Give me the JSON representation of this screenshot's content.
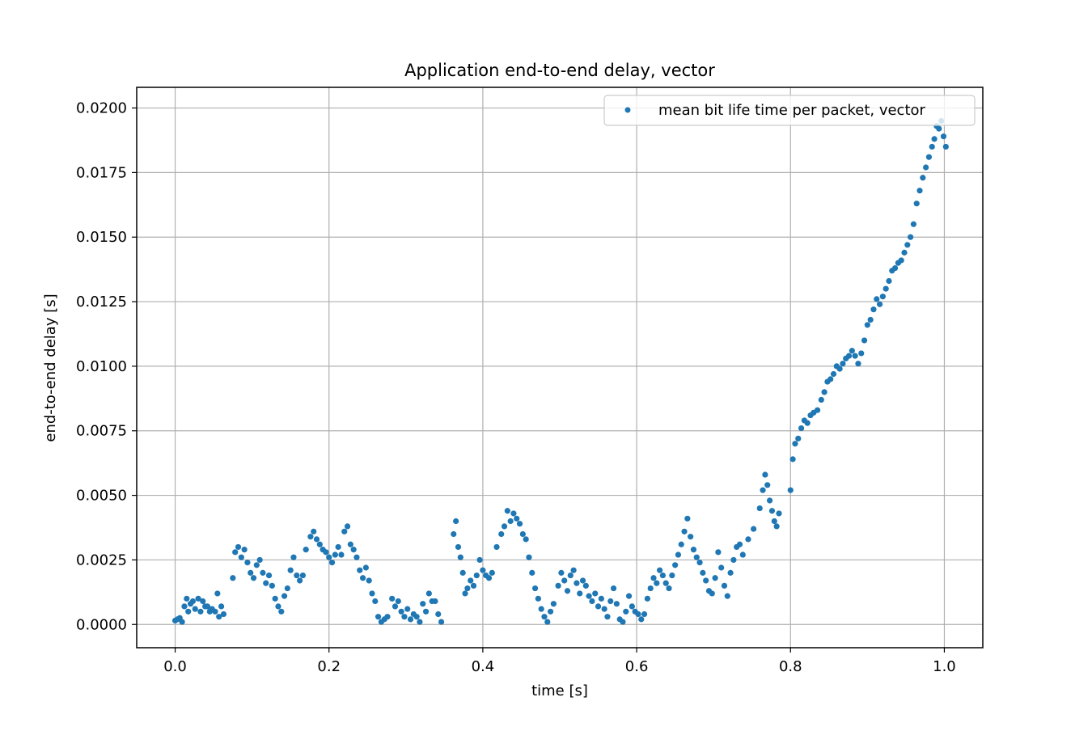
{
  "chart_data": {
    "type": "scatter",
    "title": "Application end-to-end delay, vector",
    "xlabel": "time [s]",
    "ylabel": "end-to-end delay [s]",
    "xlim": [
      -0.05,
      1.05
    ],
    "ylim": [
      -0.0009,
      0.0208
    ],
    "xticks": [
      0.0,
      0.2,
      0.4,
      0.6,
      0.8,
      1.0
    ],
    "xtick_labels": [
      "0.0",
      "0.2",
      "0.4",
      "0.6",
      "0.8",
      "1.0"
    ],
    "yticks": [
      0.0,
      0.0025,
      0.005,
      0.0075,
      0.01,
      0.0125,
      0.015,
      0.0175,
      0.02
    ],
    "ytick_labels": [
      "0.0000",
      "0.0025",
      "0.0050",
      "0.0075",
      "0.0100",
      "0.0125",
      "0.0150",
      "0.0175",
      "0.0200"
    ],
    "grid": true,
    "legend_position": "top-right",
    "series": [
      {
        "name": "mean bit life time per packet, vector",
        "color": "#1f77b4",
        "marker": "circle",
        "points": [
          [
            0.0,
            0.00015
          ],
          [
            0.003,
            0.0002
          ],
          [
            0.006,
            0.00025
          ],
          [
            0.009,
            0.0001
          ],
          [
            0.012,
            0.0007
          ],
          [
            0.015,
            0.001
          ],
          [
            0.017,
            0.0005
          ],
          [
            0.02,
            0.0008
          ],
          [
            0.023,
            0.0009
          ],
          [
            0.026,
            0.0006
          ],
          [
            0.03,
            0.001
          ],
          [
            0.033,
            0.0005
          ],
          [
            0.036,
            0.0009
          ],
          [
            0.039,
            0.0007
          ],
          [
            0.042,
            0.0007
          ],
          [
            0.045,
            0.0005
          ],
          [
            0.048,
            0.0006
          ],
          [
            0.052,
            0.0005
          ],
          [
            0.055,
            0.0012
          ],
          [
            0.057,
            0.0003
          ],
          [
            0.06,
            0.0007
          ],
          [
            0.063,
            0.0004
          ],
          [
            0.075,
            0.0018
          ],
          [
            0.078,
            0.0028
          ],
          [
            0.082,
            0.003
          ],
          [
            0.086,
            0.0026
          ],
          [
            0.09,
            0.0029
          ],
          [
            0.094,
            0.0024
          ],
          [
            0.098,
            0.002
          ],
          [
            0.102,
            0.0018
          ],
          [
            0.106,
            0.0023
          ],
          [
            0.11,
            0.0025
          ],
          [
            0.114,
            0.002
          ],
          [
            0.118,
            0.0016
          ],
          [
            0.122,
            0.0019
          ],
          [
            0.126,
            0.0015
          ],
          [
            0.13,
            0.001
          ],
          [
            0.134,
            0.0007
          ],
          [
            0.138,
            0.0005
          ],
          [
            0.142,
            0.0011
          ],
          [
            0.146,
            0.0014
          ],
          [
            0.15,
            0.0021
          ],
          [
            0.154,
            0.0026
          ],
          [
            0.158,
            0.0019
          ],
          [
            0.162,
            0.0017
          ],
          [
            0.166,
            0.0019
          ],
          [
            0.17,
            0.0029
          ],
          [
            0.176,
            0.0034
          ],
          [
            0.18,
            0.0036
          ],
          [
            0.184,
            0.0033
          ],
          [
            0.188,
            0.0031
          ],
          [
            0.192,
            0.0029
          ],
          [
            0.196,
            0.0028
          ],
          [
            0.2,
            0.0026
          ],
          [
            0.204,
            0.0024
          ],
          [
            0.208,
            0.0027
          ],
          [
            0.212,
            0.003
          ],
          [
            0.216,
            0.0027
          ],
          [
            0.22,
            0.0036
          ],
          [
            0.224,
            0.0038
          ],
          [
            0.228,
            0.0031
          ],
          [
            0.232,
            0.0029
          ],
          [
            0.236,
            0.0026
          ],
          [
            0.24,
            0.0021
          ],
          [
            0.244,
            0.0018
          ],
          [
            0.248,
            0.0022
          ],
          [
            0.252,
            0.0017
          ],
          [
            0.256,
            0.0012
          ],
          [
            0.26,
            0.0009
          ],
          [
            0.264,
            0.0003
          ],
          [
            0.268,
            0.0001
          ],
          [
            0.272,
            0.0002
          ],
          [
            0.276,
            0.0003
          ],
          [
            0.282,
            0.001
          ],
          [
            0.286,
            0.0007
          ],
          [
            0.29,
            0.0009
          ],
          [
            0.294,
            0.0005
          ],
          [
            0.298,
            0.0003
          ],
          [
            0.302,
            0.0006
          ],
          [
            0.306,
            0.0002
          ],
          [
            0.31,
            0.0004
          ],
          [
            0.314,
            0.0003
          ],
          [
            0.318,
            0.0001
          ],
          [
            0.322,
            0.0008
          ],
          [
            0.326,
            0.0005
          ],
          [
            0.33,
            0.0012
          ],
          [
            0.334,
            0.0009
          ],
          [
            0.338,
            0.0009
          ],
          [
            0.342,
            0.0004
          ],
          [
            0.346,
            0.0001
          ],
          [
            0.362,
            0.0035
          ],
          [
            0.365,
            0.004
          ],
          [
            0.368,
            0.003
          ],
          [
            0.371,
            0.0026
          ],
          [
            0.374,
            0.002
          ],
          [
            0.377,
            0.0012
          ],
          [
            0.38,
            0.0014
          ],
          [
            0.384,
            0.0017
          ],
          [
            0.388,
            0.0015
          ],
          [
            0.392,
            0.0019
          ],
          [
            0.396,
            0.0025
          ],
          [
            0.4,
            0.0021
          ],
          [
            0.404,
            0.0019
          ],
          [
            0.408,
            0.0018
          ],
          [
            0.412,
            0.002
          ],
          [
            0.418,
            0.003
          ],
          [
            0.424,
            0.0035
          ],
          [
            0.428,
            0.0038
          ],
          [
            0.432,
            0.0044
          ],
          [
            0.436,
            0.004
          ],
          [
            0.44,
            0.0043
          ],
          [
            0.444,
            0.0041
          ],
          [
            0.448,
            0.0039
          ],
          [
            0.452,
            0.0035
          ],
          [
            0.456,
            0.0033
          ],
          [
            0.46,
            0.0026
          ],
          [
            0.464,
            0.002
          ],
          [
            0.468,
            0.0014
          ],
          [
            0.472,
            0.001
          ],
          [
            0.476,
            0.0006
          ],
          [
            0.48,
            0.0003
          ],
          [
            0.484,
            0.0001
          ],
          [
            0.488,
            0.0005
          ],
          [
            0.492,
            0.0008
          ],
          [
            0.498,
            0.0015
          ],
          [
            0.502,
            0.002
          ],
          [
            0.506,
            0.0017
          ],
          [
            0.51,
            0.0013
          ],
          [
            0.514,
            0.0019
          ],
          [
            0.518,
            0.0021
          ],
          [
            0.522,
            0.0016
          ],
          [
            0.526,
            0.0012
          ],
          [
            0.53,
            0.0017
          ],
          [
            0.534,
            0.0015
          ],
          [
            0.538,
            0.0011
          ],
          [
            0.542,
            0.0009
          ],
          [
            0.546,
            0.0012
          ],
          [
            0.55,
            0.0007
          ],
          [
            0.554,
            0.001
          ],
          [
            0.558,
            0.0006
          ],
          [
            0.562,
            0.0003
          ],
          [
            0.566,
            0.0009
          ],
          [
            0.57,
            0.0014
          ],
          [
            0.574,
            0.0008
          ],
          [
            0.578,
            0.0002
          ],
          [
            0.582,
            0.0001
          ],
          [
            0.586,
            0.0005
          ],
          [
            0.59,
            0.0011
          ],
          [
            0.594,
            0.0007
          ],
          [
            0.598,
            0.0005
          ],
          [
            0.602,
            0.0004
          ],
          [
            0.606,
            0.0002
          ],
          [
            0.61,
            0.0004
          ],
          [
            0.614,
            0.001
          ],
          [
            0.618,
            0.0014
          ],
          [
            0.622,
            0.0018
          ],
          [
            0.626,
            0.0016
          ],
          [
            0.63,
            0.0021
          ],
          [
            0.634,
            0.0019
          ],
          [
            0.638,
            0.0016
          ],
          [
            0.642,
            0.0014
          ],
          [
            0.646,
            0.0019
          ],
          [
            0.65,
            0.0023
          ],
          [
            0.654,
            0.0027
          ],
          [
            0.658,
            0.0031
          ],
          [
            0.662,
            0.0036
          ],
          [
            0.666,
            0.0041
          ],
          [
            0.67,
            0.0034
          ],
          [
            0.674,
            0.0029
          ],
          [
            0.678,
            0.0026
          ],
          [
            0.682,
            0.0024
          ],
          [
            0.686,
            0.002
          ],
          [
            0.69,
            0.0017
          ],
          [
            0.694,
            0.0013
          ],
          [
            0.698,
            0.0012
          ],
          [
            0.702,
            0.0018
          ],
          [
            0.706,
            0.0028
          ],
          [
            0.71,
            0.0022
          ],
          [
            0.714,
            0.0015
          ],
          [
            0.718,
            0.0011
          ],
          [
            0.722,
            0.002
          ],
          [
            0.726,
            0.0025
          ],
          [
            0.73,
            0.003
          ],
          [
            0.734,
            0.0031
          ],
          [
            0.738,
            0.0027
          ],
          [
            0.745,
            0.0033
          ],
          [
            0.752,
            0.0037
          ],
          [
            0.76,
            0.0045
          ],
          [
            0.764,
            0.0052
          ],
          [
            0.767,
            0.0058
          ],
          [
            0.77,
            0.0054
          ],
          [
            0.773,
            0.0048
          ],
          [
            0.776,
            0.0044
          ],
          [
            0.779,
            0.004
          ],
          [
            0.782,
            0.0038
          ],
          [
            0.785,
            0.0043
          ],
          [
            0.8,
            0.0052
          ],
          [
            0.803,
            0.0064
          ],
          [
            0.806,
            0.007
          ],
          [
            0.81,
            0.0072
          ],
          [
            0.814,
            0.0076
          ],
          [
            0.818,
            0.0079
          ],
          [
            0.822,
            0.0078
          ],
          [
            0.826,
            0.0081
          ],
          [
            0.83,
            0.0082
          ],
          [
            0.835,
            0.0083
          ],
          [
            0.84,
            0.0087
          ],
          [
            0.844,
            0.009
          ],
          [
            0.848,
            0.0094
          ],
          [
            0.852,
            0.0095
          ],
          [
            0.856,
            0.0097
          ],
          [
            0.86,
            0.01
          ],
          [
            0.864,
            0.0099
          ],
          [
            0.868,
            0.0101
          ],
          [
            0.872,
            0.0103
          ],
          [
            0.876,
            0.0104
          ],
          [
            0.88,
            0.0106
          ],
          [
            0.884,
            0.0104
          ],
          [
            0.888,
            0.0101
          ],
          [
            0.892,
            0.0105
          ],
          [
            0.896,
            0.011
          ],
          [
            0.9,
            0.0116
          ],
          [
            0.904,
            0.0118
          ],
          [
            0.908,
            0.0122
          ],
          [
            0.912,
            0.0126
          ],
          [
            0.916,
            0.0124
          ],
          [
            0.92,
            0.0127
          ],
          [
            0.924,
            0.013
          ],
          [
            0.928,
            0.0133
          ],
          [
            0.932,
            0.0137
          ],
          [
            0.936,
            0.0138
          ],
          [
            0.94,
            0.014
          ],
          [
            0.944,
            0.0141
          ],
          [
            0.948,
            0.0144
          ],
          [
            0.952,
            0.0147
          ],
          [
            0.956,
            0.015
          ],
          [
            0.96,
            0.0155
          ],
          [
            0.964,
            0.0163
          ],
          [
            0.968,
            0.0168
          ],
          [
            0.972,
            0.0173
          ],
          [
            0.976,
            0.0177
          ],
          [
            0.98,
            0.0181
          ],
          [
            0.984,
            0.0185
          ],
          [
            0.987,
            0.0188
          ],
          [
            0.99,
            0.0193
          ],
          [
            0.993,
            0.0192
          ],
          [
            0.996,
            0.0195
          ],
          [
            0.999,
            0.0189
          ],
          [
            1.002,
            0.0185
          ]
        ]
      }
    ]
  }
}
